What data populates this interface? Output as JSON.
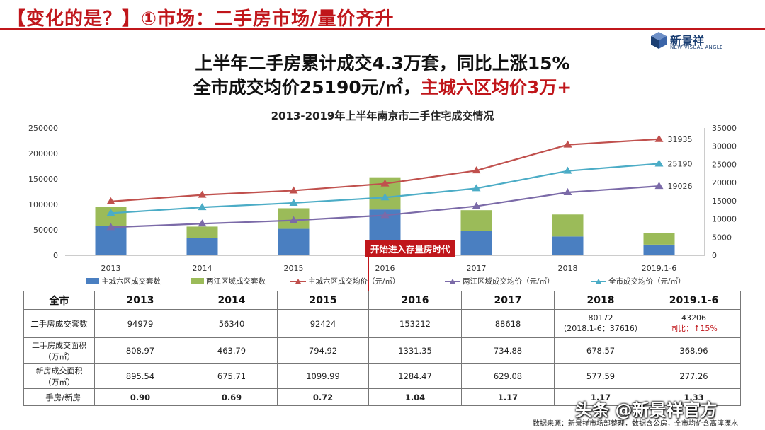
{
  "header": {
    "title": "【变化的是？】①市场：二手房市场/量价齐升"
  },
  "logo": {
    "name": "新景祥",
    "subtitle": "NEW VISUAL ANGLE",
    "color": "#1b3f73"
  },
  "headline": {
    "line1": "上半年二手房累计成交4.3万套，同比上涨15%",
    "line2_black": "全市成交均价25190元/㎡，",
    "line2_red": "主城六区均价3万+"
  },
  "annotation": {
    "label": "开始进入存量房时代"
  },
  "chart_data": {
    "type": "bar+line",
    "title": "2013-2019年上半年南京市二手住宅成交情况",
    "categories": [
      "2013",
      "2014",
      "2015",
      "2016",
      "2017",
      "2018",
      "2019.1-6"
    ],
    "y_left": {
      "min": 0,
      "max": 250000,
      "ticks": [
        0,
        50000,
        100000,
        150000,
        200000,
        250000
      ]
    },
    "y_right": {
      "min": 0,
      "max": 35000,
      "ticks": [
        0,
        5000,
        10000,
        15000,
        20000,
        25000,
        30000,
        35000
      ]
    },
    "stacked_bars": [
      {
        "name": "主城六区成交套数",
        "color": "#4a7fc1",
        "values": [
          57000,
          34000,
          52000,
          90000,
          48000,
          37000,
          21000
        ]
      },
      {
        "name": "两江区域成交套数",
        "color": "#9bbb59",
        "values": [
          37979,
          22340,
          40424,
          63212,
          40618,
          43172,
          22206
        ]
      }
    ],
    "lines": [
      {
        "name": "主城六区成交均价（元/㎡）",
        "color": "#c0504d",
        "values": [
          14800,
          16600,
          17800,
          19700,
          23300,
          30400,
          31935
        ],
        "end_label": "31935"
      },
      {
        "name": "两江区域成交均价（元/㎡）",
        "color": "#7b6aa8",
        "values": [
          7700,
          8700,
          9600,
          11000,
          13500,
          17300,
          19026
        ],
        "end_label": "19026"
      },
      {
        "name": "全市成交均价（元/㎡）",
        "color": "#4bacc6",
        "values": [
          11600,
          13200,
          14400,
          15900,
          18400,
          23200,
          25190
        ],
        "end_label": "25190"
      }
    ],
    "legend_position": "bottom",
    "grid": false
  },
  "table": {
    "headers": [
      "全市",
      "2013",
      "2014",
      "2015",
      "2016",
      "2017",
      "2018",
      "2019.1-6"
    ],
    "rows": [
      {
        "label": "二手房成交套数",
        "values": [
          "94979",
          "56340",
          "92424",
          "153212",
          "88618",
          "80172",
          "43206"
        ],
        "extra_2018": "（2018.1-6：37616）",
        "extra_2019": "同比：↑15%"
      },
      {
        "label": "二手房成交面积",
        "label_unit": "（万㎡）",
        "values": [
          "808.97",
          "463.79",
          "794.92",
          "1331.35",
          "734.88",
          "678.57",
          "368.96"
        ]
      },
      {
        "label": "新房成交面积",
        "label_unit": "（万㎡）",
        "values": [
          "895.54",
          "675.71",
          "1099.99",
          "1284.47",
          "629.08",
          "577.59",
          "277.26"
        ]
      },
      {
        "label": "二手房/新房",
        "values": [
          "0.90",
          "0.69",
          "0.72",
          "1.04",
          "1.17",
          "1.17",
          "1.33"
        ]
      }
    ]
  },
  "colors": {
    "brand_red": "#c0161b",
    "ratio_green": "#2fa14c"
  },
  "footnote": "数据来源：新景祥市场部整理，数据含公房，全市均价含高淳溧水",
  "watermark": "头条 @新景祥官方"
}
